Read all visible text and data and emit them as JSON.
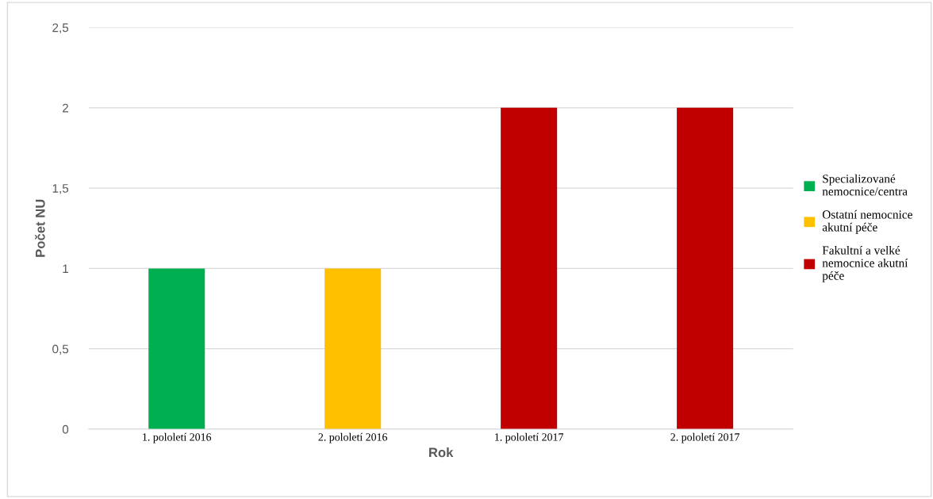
{
  "chart_data": {
    "type": "bar",
    "xlabel": "Rok",
    "ylabel": "Počet NU",
    "categories": [
      "1. pololetí 2016",
      "2. pololetí 2016",
      "1. pololetí 2017",
      "2. pololetí 2017"
    ],
    "series": [
      {
        "name": "Specializované nemocnice/centra",
        "color": "#00b050",
        "values": [
          1,
          null,
          null,
          null
        ]
      },
      {
        "name": "Ostatní nemocnice akutní péče",
        "color": "#ffc000",
        "values": [
          null,
          1,
          null,
          null
        ]
      },
      {
        "name": "Fakultní a velké nemocnice akutní péče",
        "color": "#c00000",
        "values": [
          null,
          null,
          2,
          2
        ]
      }
    ],
    "ylim": [
      0,
      2.5
    ],
    "yticks": [
      0,
      {
        "value": 0.5,
        "label": "0,5"
      },
      1,
      {
        "value": 1.5,
        "label": "1,5"
      },
      2,
      {
        "value": 2.5,
        "label": "2,5"
      }
    ],
    "grid": "y",
    "legend": "right"
  }
}
